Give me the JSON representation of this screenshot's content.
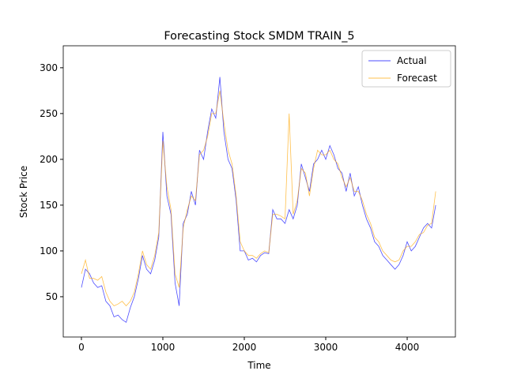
{
  "chart_data": {
    "type": "line",
    "title": "Forecasting Stock SMDM TRAIN_5",
    "x_label": "Time",
    "y_label": "Stock Price",
    "x": [
      0,
      50,
      100,
      150,
      200,
      250,
      300,
      350,
      400,
      450,
      500,
      550,
      600,
      650,
      700,
      750,
      800,
      850,
      900,
      950,
      1000,
      1050,
      1100,
      1150,
      1200,
      1250,
      1300,
      1350,
      1400,
      1450,
      1500,
      1550,
      1600,
      1650,
      1700,
      1750,
      1800,
      1850,
      1900,
      1950,
      2000,
      2050,
      2100,
      2150,
      2200,
      2250,
      2300,
      2350,
      2400,
      2450,
      2500,
      2550,
      2600,
      2650,
      2700,
      2750,
      2800,
      2850,
      2900,
      2950,
      3000,
      3050,
      3100,
      3150,
      3200,
      3250,
      3300,
      3350,
      3400,
      3450,
      3500,
      3550,
      3600,
      3650,
      3700,
      3750,
      3800,
      3850,
      3900,
      3950,
      4000,
      4050,
      4100,
      4150,
      4200,
      4250,
      4300,
      4350
    ],
    "series": [
      {
        "name": "Actual",
        "color": "#0000ff",
        "values": [
          60,
          80,
          75,
          65,
          60,
          62,
          45,
          40,
          28,
          30,
          25,
          22,
          38,
          50,
          70,
          95,
          80,
          75,
          90,
          115,
          230,
          160,
          140,
          65,
          40,
          130,
          140,
          165,
          150,
          210,
          200,
          230,
          255,
          245,
          290,
          230,
          200,
          190,
          155,
          100,
          100,
          90,
          92,
          88,
          95,
          98,
          97,
          145,
          135,
          135,
          130,
          145,
          135,
          150,
          195,
          180,
          165,
          195,
          200,
          210,
          200,
          215,
          205,
          190,
          185,
          165,
          185,
          160,
          170,
          150,
          135,
          125,
          110,
          105,
          95,
          90,
          85,
          80,
          85,
          95,
          110,
          100,
          105,
          115,
          125,
          130,
          125,
          150
        ]
      },
      {
        "name": "Forecast",
        "color": "#ffa500",
        "values": [
          75,
          90,
          70,
          70,
          68,
          72,
          55,
          45,
          40,
          42,
          45,
          40,
          45,
          55,
          75,
          100,
          85,
          80,
          95,
          120,
          220,
          170,
          145,
          75,
          60,
          125,
          145,
          160,
          155,
          205,
          210,
          225,
          250,
          250,
          275,
          240,
          210,
          195,
          160,
          110,
          100,
          95,
          95,
          92,
          97,
          100,
          98,
          140,
          140,
          138,
          135,
          250,
          140,
          155,
          190,
          185,
          160,
          190,
          210,
          205,
          205,
          210,
          200,
          195,
          180,
          170,
          180,
          165,
          165,
          155,
          140,
          130,
          115,
          110,
          100,
          95,
          90,
          88,
          90,
          100,
          105,
          105,
          110,
          118,
          120,
          128,
          130,
          165
        ]
      }
    ],
    "xlim": [
      -223,
      4592
    ],
    "ylim": [
      6,
      324
    ],
    "xticks": [
      0,
      1000,
      2000,
      3000,
      4000
    ],
    "yticks": [
      50,
      100,
      150,
      200,
      250,
      300
    ],
    "legend": "upper right"
  }
}
